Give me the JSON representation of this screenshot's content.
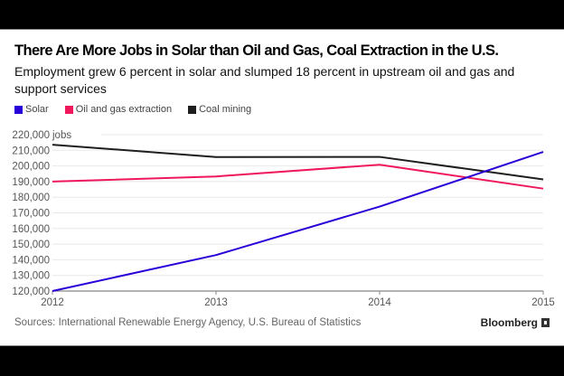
{
  "chart_data": {
    "type": "line",
    "title": "There Are More Jobs in Solar than Oil and Gas, Coal Extraction in the U.S.",
    "subtitle": "Employment grew 6 percent in solar and slumped 18 percent in upstream oil and gas and support services",
    "x": [
      2012,
      2013,
      2014,
      2015
    ],
    "x_tick_labels": [
      "2012",
      "2013",
      "2014",
      "2015"
    ],
    "xlabel": "",
    "ylabel": "jobs",
    "ylim": [
      120000,
      220000
    ],
    "y_ticks": [
      120000,
      130000,
      140000,
      150000,
      160000,
      170000,
      180000,
      190000,
      200000,
      210000,
      220000
    ],
    "y_tick_labels": [
      "120,000",
      "130,000",
      "140,000",
      "150,000",
      "160,000",
      "170,000",
      "180,000",
      "190,000",
      "200,000",
      "210,000",
      "220,000 jobs"
    ],
    "grid": true,
    "legend_position": "top-left",
    "series": [
      {
        "name": "Solar",
        "color": "#2a00d8",
        "values": [
          120000,
          143000,
          174000,
          209000
        ]
      },
      {
        "name": "Oil and gas extraction",
        "color": "#f0185c",
        "values": [
          190000,
          193300,
          200800,
          185500
        ]
      },
      {
        "name": "Coal mining",
        "color": "#1e1e1e",
        "values": [
          213600,
          205700,
          205800,
          191400
        ]
      }
    ]
  },
  "footer": {
    "source": "Sources: International Renewable Energy Agency, U.S. Bureau of Statistics",
    "brand": "Bloomberg"
  }
}
